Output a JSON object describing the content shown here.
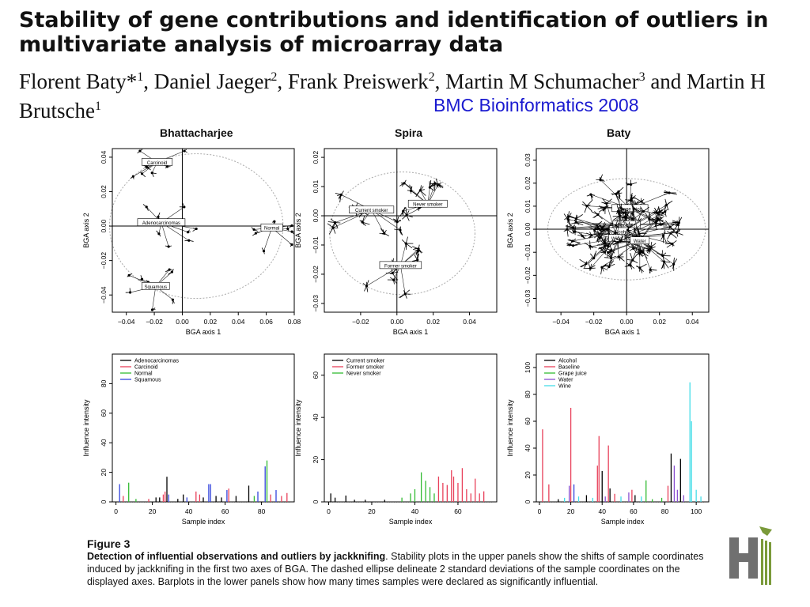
{
  "title": "Stability of gene contributions and identification of outliers in multivariate analysis of microarray data",
  "authors": {
    "a1": "Florent Baty*",
    "s1": "1",
    "a2": ", Daniel Jaeger",
    "s2": "2",
    "a3": ", Frank Preiswerk",
    "s3": "2",
    "a4": ", Martin M Schumacher",
    "s4": "3",
    "a5": " and Martin H Brutsche",
    "s5": "1"
  },
  "journal": "BMC Bioinformatics 2008",
  "panels": {
    "bhattacharjee": "Bhattacharjee",
    "spira": "Spira",
    "baty": "Baty"
  },
  "caption": {
    "figure_label": "Figure 3",
    "lead": "Detection of influential observations and outliers by jackknifing",
    "text": ". Stability plots in the upper panels show the shifts of sample coordinates induced by jackknifing in the first two axes of BGA. The dashed ellipse delineate 2 standard deviations of the sample coordinates on the displayed axes. Barplots in the lower panels show how many times samples were declared as significantly influential."
  },
  "colors": {
    "black": "#000000",
    "red": "#e8405a",
    "green": "#33bb33",
    "blue": "#3344dd",
    "cyan": "#44dde8",
    "journal_blue": "#1a1ad0",
    "logo_gray": "#707070",
    "logo_green": "#7a9a3a"
  },
  "logo_icon": "institution-logo-icon",
  "chart_data": [
    {
      "type": "scatter",
      "panel": "Bhattacharjee",
      "title": "Bhattacharjee",
      "xlabel": "BGA axis 1",
      "ylabel": "BGA axis 2",
      "xlim": [
        -0.05,
        0.08
      ],
      "ylim": [
        -0.05,
        0.045
      ],
      "xticks": [
        -0.04,
        -0.02,
        0.0,
        0.02,
        0.04,
        0.06,
        0.08
      ],
      "yticks": [
        -0.04,
        -0.02,
        0.0,
        0.02,
        0.04
      ],
      "xtick_labels": [
        "−0.04",
        "−0.02",
        "0.00",
        "0.02",
        "0.04",
        "0.06",
        "0.08"
      ],
      "ytick_labels": [
        "−0.04",
        "−0.02",
        "0.00",
        "0.02",
        "0.04"
      ],
      "groups": [
        {
          "name": "Carcinoid",
          "x": -0.018,
          "y": 0.037
        },
        {
          "name": "Adenocarcinomas",
          "x": -0.015,
          "y": 0.002
        },
        {
          "name": "Normal",
          "x": 0.064,
          "y": -0.001
        },
        {
          "name": "Squamous",
          "x": -0.019,
          "y": -0.035
        }
      ],
      "ellipse": {
        "cx": 0.01,
        "cy": 0.0,
        "rx": 0.062,
        "ry": 0.042
      },
      "grid": false
    },
    {
      "type": "scatter",
      "panel": "Spira",
      "title": "Spira",
      "xlabel": "BGA axis 1",
      "ylabel": "BGA axis 2",
      "xlim": [
        -0.04,
        0.055
      ],
      "ylim": [
        -0.033,
        0.023
      ],
      "xticks": [
        -0.02,
        0.0,
        0.02,
        0.04
      ],
      "yticks": [
        -0.03,
        -0.02,
        -0.01,
        0.0,
        0.01,
        0.02
      ],
      "xtick_labels": [
        "−0.02",
        "0.00",
        "0.02",
        "0.04"
      ],
      "ytick_labels": [
        "−0.03",
        "−0.02",
        "−0.01",
        "0.00",
        "0.01",
        "0.02"
      ],
      "groups": [
        {
          "name": "Current smoker",
          "x": -0.014,
          "y": 0.002
        },
        {
          "name": "Never smoker",
          "x": 0.017,
          "y": 0.004
        },
        {
          "name": "Former smoker",
          "x": 0.002,
          "y": -0.017
        }
      ],
      "ellipse": {
        "cx": 0.003,
        "cy": -0.006,
        "rx": 0.04,
        "ry": 0.021
      },
      "grid": false
    },
    {
      "type": "scatter",
      "panel": "Baty",
      "title": "Baty",
      "xlabel": "BGA axis 1",
      "ylabel": "BGA axis 2",
      "xlim": [
        -0.055,
        0.05
      ],
      "ylim": [
        -0.036,
        0.035
      ],
      "xticks": [
        -0.04,
        -0.02,
        0.0,
        0.02,
        0.04
      ],
      "yticks": [
        -0.03,
        -0.02,
        -0.01,
        0.0,
        0.01,
        0.02,
        0.03
      ],
      "xtick_labels": [
        "−0.04",
        "−0.02",
        "0.00",
        "0.02",
        "0.04"
      ],
      "ytick_labels": [
        "−0.03",
        "−0.02",
        "−0.01",
        "0.00",
        "0.01",
        "0.02",
        "0.03"
      ],
      "groups": [
        {
          "name": "Grape juice",
          "x": 0.002,
          "y": 0.009
        },
        {
          "name": "Baseline",
          "x": 0.0,
          "y": 0.002
        },
        {
          "name": "Alcohol",
          "x": -0.003,
          "y": -0.001
        },
        {
          "name": "Wine",
          "x": -0.006,
          "y": -0.004
        },
        {
          "name": "Water",
          "x": 0.008,
          "y": -0.005
        }
      ],
      "ellipse": {
        "cx": 0.0,
        "cy": 0.0,
        "rx": 0.048,
        "ry": 0.022
      },
      "grid": false
    },
    {
      "type": "bar",
      "panel": "Bhattacharjee",
      "xlabel": "Sample index",
      "ylabel": "Influence intensity",
      "xlim": [
        -2,
        98
      ],
      "ylim": [
        0,
        100
      ],
      "xticks": [
        0,
        20,
        40,
        60,
        80
      ],
      "yticks": [
        0,
        20,
        40,
        60,
        80
      ],
      "legend": [
        "Adenocarcinomas",
        "Carcinoid",
        "Normal",
        "Squamous"
      ],
      "legend_colors": [
        "#000000",
        "#e8405a",
        "#33bb33",
        "#3344dd"
      ],
      "legend_position": "top-left",
      "bars": [
        {
          "x": 2,
          "y": 12,
          "color": "#3344dd"
        },
        {
          "x": 4,
          "y": 4,
          "color": "#e8405a"
        },
        {
          "x": 7,
          "y": 13,
          "color": "#33bb33"
        },
        {
          "x": 11,
          "y": 2,
          "color": "#33bb33"
        },
        {
          "x": 18,
          "y": 2,
          "color": "#e8405a"
        },
        {
          "x": 22,
          "y": 3,
          "color": "#000000"
        },
        {
          "x": 24,
          "y": 3,
          "color": "#000000"
        },
        {
          "x": 26,
          "y": 5,
          "color": "#e8405a"
        },
        {
          "x": 27,
          "y": 7,
          "color": "#e8405a"
        },
        {
          "x": 28,
          "y": 17,
          "color": "#000000"
        },
        {
          "x": 29,
          "y": 5,
          "color": "#3344dd"
        },
        {
          "x": 34,
          "y": 2,
          "color": "#000000"
        },
        {
          "x": 37,
          "y": 5,
          "color": "#000000"
        },
        {
          "x": 39,
          "y": 3,
          "color": "#3344dd"
        },
        {
          "x": 44,
          "y": 7,
          "color": "#e8405a"
        },
        {
          "x": 46,
          "y": 5,
          "color": "#e8405a"
        },
        {
          "x": 48,
          "y": 3,
          "color": "#000000"
        },
        {
          "x": 51,
          "y": 12,
          "color": "#3344dd"
        },
        {
          "x": 52,
          "y": 12,
          "color": "#3344dd"
        },
        {
          "x": 55,
          "y": 4,
          "color": "#000000"
        },
        {
          "x": 58,
          "y": 3,
          "color": "#000000"
        },
        {
          "x": 61,
          "y": 8,
          "color": "#3344dd"
        },
        {
          "x": 62,
          "y": 9,
          "color": "#e8405a"
        },
        {
          "x": 66,
          "y": 4,
          "color": "#000000"
        },
        {
          "x": 73,
          "y": 11,
          "color": "#000000"
        },
        {
          "x": 76,
          "y": 4,
          "color": "#33bb33"
        },
        {
          "x": 78,
          "y": 7,
          "color": "#3344dd"
        },
        {
          "x": 82,
          "y": 24,
          "color": "#3344dd"
        },
        {
          "x": 83,
          "y": 28,
          "color": "#33bb33"
        },
        {
          "x": 85,
          "y": 5,
          "color": "#e8405a"
        },
        {
          "x": 88,
          "y": 8,
          "color": "#3344dd"
        },
        {
          "x": 91,
          "y": 4,
          "color": "#e8405a"
        },
        {
          "x": 94,
          "y": 6,
          "color": "#e8405a"
        }
      ]
    },
    {
      "type": "bar",
      "panel": "Spira",
      "xlabel": "Sample index",
      "ylabel": "Influence intensity",
      "xlim": [
        -2,
        78
      ],
      "ylim": [
        0,
        70
      ],
      "xticks": [
        0,
        20,
        40,
        60
      ],
      "yticks": [
        0,
        20,
        40,
        60
      ],
      "legend": [
        "Current smoker",
        "Former smoker",
        "Never smoker"
      ],
      "legend_colors": [
        "#000000",
        "#e8405a",
        "#33bb33"
      ],
      "legend_position": "top-left",
      "bars": [
        {
          "x": 1,
          "y": 4,
          "color": "#000000"
        },
        {
          "x": 3,
          "y": 2,
          "color": "#000000"
        },
        {
          "x": 8,
          "y": 3,
          "color": "#000000"
        },
        {
          "x": 12,
          "y": 1,
          "color": "#000000"
        },
        {
          "x": 17,
          "y": 1,
          "color": "#000000"
        },
        {
          "x": 26,
          "y": 1,
          "color": "#000000"
        },
        {
          "x": 34,
          "y": 2,
          "color": "#33bb33"
        },
        {
          "x": 38,
          "y": 4,
          "color": "#33bb33"
        },
        {
          "x": 40,
          "y": 6,
          "color": "#33bb33"
        },
        {
          "x": 43,
          "y": 14,
          "color": "#33bb33"
        },
        {
          "x": 45,
          "y": 10,
          "color": "#33bb33"
        },
        {
          "x": 47,
          "y": 7,
          "color": "#33bb33"
        },
        {
          "x": 49,
          "y": 4,
          "color": "#33bb33"
        },
        {
          "x": 51,
          "y": 12,
          "color": "#e8405a"
        },
        {
          "x": 53,
          "y": 9,
          "color": "#e8405a"
        },
        {
          "x": 55,
          "y": 8,
          "color": "#e8405a"
        },
        {
          "x": 57,
          "y": 15,
          "color": "#e8405a"
        },
        {
          "x": 58,
          "y": 12,
          "color": "#e8405a"
        },
        {
          "x": 60,
          "y": 9,
          "color": "#e8405a"
        },
        {
          "x": 62,
          "y": 16,
          "color": "#e8405a"
        },
        {
          "x": 64,
          "y": 6,
          "color": "#e8405a"
        },
        {
          "x": 66,
          "y": 4,
          "color": "#e8405a"
        },
        {
          "x": 68,
          "y": 11,
          "color": "#e8405a"
        },
        {
          "x": 70,
          "y": 4,
          "color": "#e8405a"
        },
        {
          "x": 72,
          "y": 5,
          "color": "#e8405a"
        }
      ]
    },
    {
      "type": "bar",
      "panel": "Baty",
      "xlabel": "Sample index",
      "ylabel": "Influence intensity",
      "xlim": [
        -2,
        108
      ],
      "ylim": [
        0,
        110
      ],
      "xticks": [
        0,
        20,
        40,
        60,
        80,
        100
      ],
      "yticks": [
        0,
        20,
        40,
        60,
        80,
        100
      ],
      "legend": [
        "Alcohol",
        "Baseline",
        "Grape juice",
        "Water",
        "Wine"
      ],
      "legend_colors": [
        "#000000",
        "#e8405a",
        "#33bb33",
        "#8a4fd0",
        "#44dde8"
      ],
      "legend_position": "top-left",
      "bars": [
        {
          "x": 2,
          "y": 54,
          "color": "#e8405a"
        },
        {
          "x": 6,
          "y": 13,
          "color": "#e8405a"
        },
        {
          "x": 12,
          "y": 2,
          "color": "#000000"
        },
        {
          "x": 16,
          "y": 3,
          "color": "#44dde8"
        },
        {
          "x": 19,
          "y": 12,
          "color": "#8a4fd0"
        },
        {
          "x": 20,
          "y": 70,
          "color": "#e8405a"
        },
        {
          "x": 22,
          "y": 13,
          "color": "#3344dd"
        },
        {
          "x": 25,
          "y": 4,
          "color": "#44dde8"
        },
        {
          "x": 30,
          "y": 5,
          "color": "#000000"
        },
        {
          "x": 34,
          "y": 3,
          "color": "#44dde8"
        },
        {
          "x": 37,
          "y": 27,
          "color": "#e8405a"
        },
        {
          "x": 38,
          "y": 49,
          "color": "#e8405a"
        },
        {
          "x": 40,
          "y": 23,
          "color": "#000000"
        },
        {
          "x": 42,
          "y": 4,
          "color": "#8a4fd0"
        },
        {
          "x": 44,
          "y": 42,
          "color": "#e8405a"
        },
        {
          "x": 45,
          "y": 10,
          "color": "#000000"
        },
        {
          "x": 48,
          "y": 6,
          "color": "#e8405a"
        },
        {
          "x": 52,
          "y": 4,
          "color": "#44dde8"
        },
        {
          "x": 57,
          "y": 7,
          "color": "#8a4fd0"
        },
        {
          "x": 59,
          "y": 9,
          "color": "#e8405a"
        },
        {
          "x": 61,
          "y": 5,
          "color": "#000000"
        },
        {
          "x": 65,
          "y": 4,
          "color": "#44dde8"
        },
        {
          "x": 68,
          "y": 16,
          "color": "#33bb33"
        },
        {
          "x": 72,
          "y": 2,
          "color": "#33bb33"
        },
        {
          "x": 78,
          "y": 3,
          "color": "#33bb33"
        },
        {
          "x": 82,
          "y": 12,
          "color": "#e8405a"
        },
        {
          "x": 84,
          "y": 36,
          "color": "#000000"
        },
        {
          "x": 86,
          "y": 27,
          "color": "#8a4fd0"
        },
        {
          "x": 88,
          "y": 9,
          "color": "#8a4fd0"
        },
        {
          "x": 90,
          "y": 32,
          "color": "#000000"
        },
        {
          "x": 92,
          "y": 5,
          "color": "#8a4fd0"
        },
        {
          "x": 96,
          "y": 89,
          "color": "#44dde8"
        },
        {
          "x": 97,
          "y": 60,
          "color": "#44dde8"
        },
        {
          "x": 100,
          "y": 9,
          "color": "#44dde8"
        },
        {
          "x": 103,
          "y": 4,
          "color": "#44dde8"
        }
      ]
    }
  ]
}
